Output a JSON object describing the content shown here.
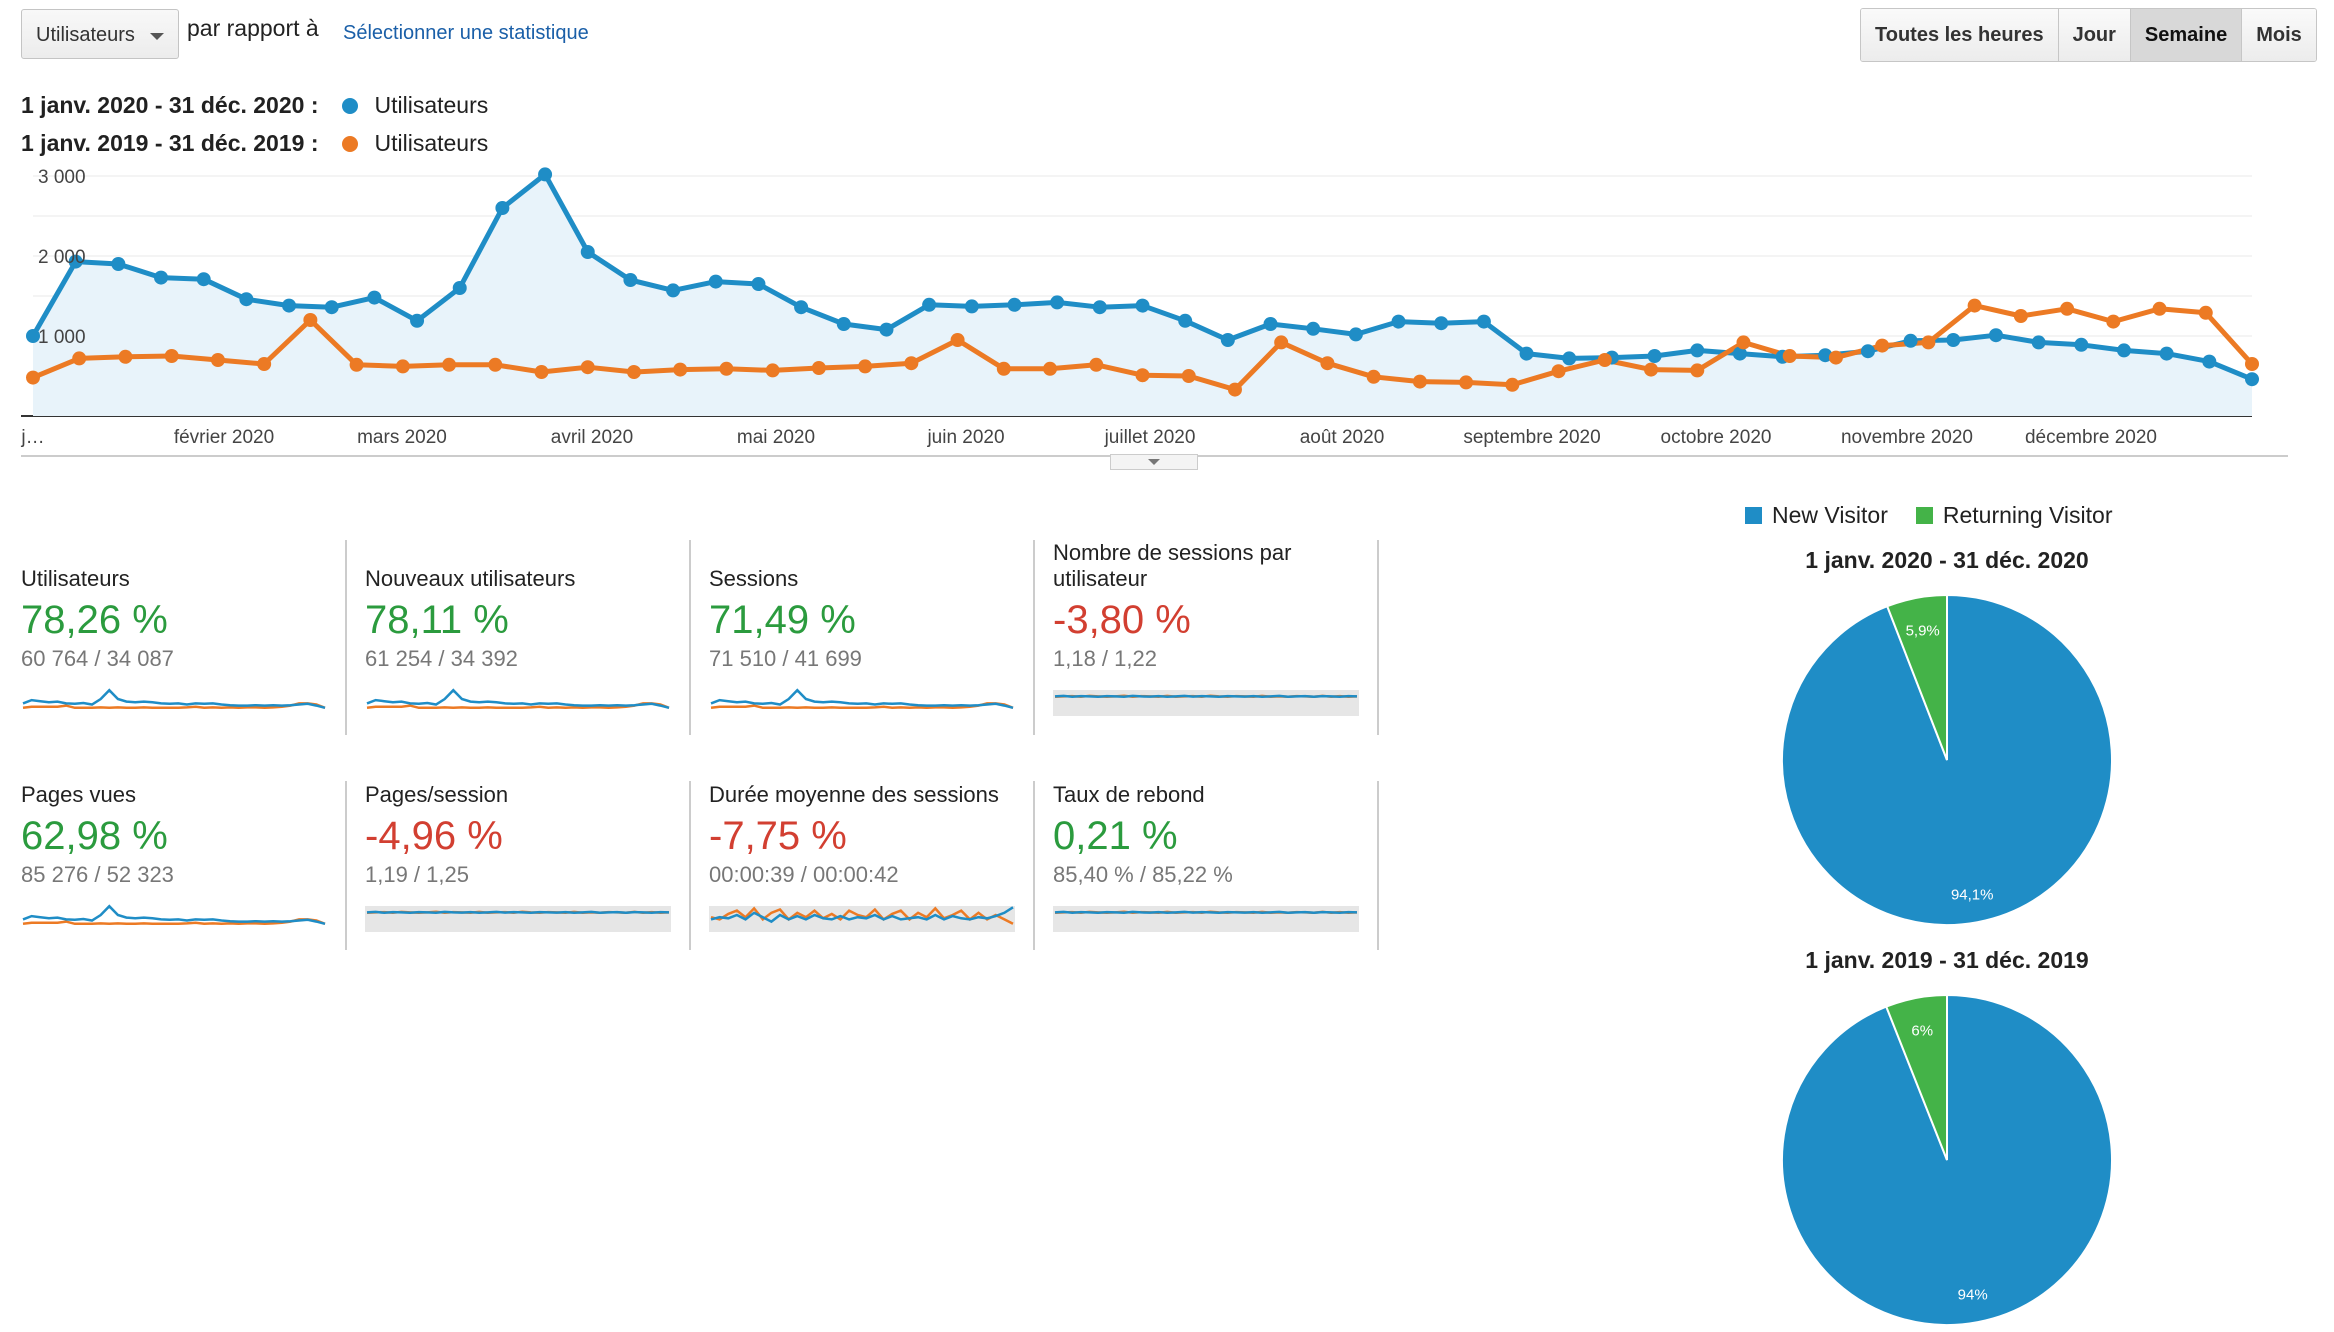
{
  "toolbar": {
    "metric_select": "Utilisateurs",
    "compare_label": "par rapport à",
    "select_stat_link": "Sélectionner une statistique",
    "periods": [
      "Toutes les heures",
      "Jour",
      "Semaine",
      "Mois"
    ],
    "active_period": "Semaine"
  },
  "legend": [
    {
      "range": "1 janv. 2020 - 31 déc. 2020 :",
      "name": "Utilisateurs",
      "color": "#1f8dc6"
    },
    {
      "range": "1 janv. 2019 - 31 déc. 2019 :",
      "name": "Utilisateurs",
      "color": "#ec7a24"
    }
  ],
  "chart_data": [
    {
      "type": "area",
      "title": "",
      "y_ticks": [
        "3 000",
        "2 000",
        "1 000"
      ],
      "y_tick_values": [
        3000,
        2000,
        1000
      ],
      "ylim": [
        0,
        3000
      ],
      "x_labels": [
        "j…",
        "février 2020",
        "mars 2020",
        "avril 2020",
        "mai 2020",
        "juin 2020",
        "juillet 2020",
        "août 2020",
        "septembre 2020",
        "octobre 2020",
        "novembre 2020",
        "décembre 2020"
      ],
      "grid": true,
      "series": [
        {
          "name": "1 janv. 2020 - 31 déc. 2020 : Utilisateurs",
          "color": "#1f8dc6",
          "values": [
            1000,
            1930,
            1900,
            1730,
            1710,
            1460,
            1380,
            1360,
            1480,
            1190,
            1600,
            2600,
            3020,
            2050,
            1700,
            1570,
            1680,
            1650,
            1360,
            1150,
            1080,
            1390,
            1370,
            1390,
            1420,
            1360,
            1380,
            1190,
            950,
            1150,
            1090,
            1020,
            1180,
            1160,
            1180,
            780,
            720,
            730,
            750,
            820,
            780,
            740,
            760,
            810,
            940,
            950,
            1010,
            920,
            890,
            820,
            780,
            680,
            460
          ]
        },
        {
          "name": "1 janv. 2019 - 31 déc. 2019 : Utilisateurs",
          "color": "#ec7a24",
          "values": [
            480,
            720,
            740,
            750,
            700,
            650,
            1200,
            640,
            620,
            640,
            640,
            550,
            610,
            550,
            580,
            590,
            570,
            600,
            620,
            660,
            950,
            590,
            590,
            640,
            510,
            500,
            330,
            920,
            660,
            490,
            430,
            420,
            390,
            560,
            700,
            580,
            570,
            920,
            750,
            730,
            880,
            920,
            1380,
            1250,
            1340,
            1180,
            1340,
            1290,
            650
          ]
        }
      ]
    },
    {
      "type": "pie",
      "title": "1 janv. 2020 - 31 déc. 2020",
      "categories": [
        "New Visitor",
        "Returning Visitor"
      ],
      "values": [
        94.1,
        5.9
      ],
      "labels": [
        "94,1%",
        "5,9%"
      ],
      "colors": [
        "#1f8dc6",
        "#44b348"
      ]
    },
    {
      "type": "pie",
      "title": "1 janv. 2019 - 31 déc. 2019",
      "categories": [
        "New Visitor",
        "Returning Visitor"
      ],
      "values": [
        94,
        6
      ],
      "labels": [
        "94%",
        "6%"
      ],
      "colors": [
        "#1f8dc6",
        "#44b348"
      ]
    }
  ],
  "pie_legend": [
    {
      "name": "New Visitor",
      "color": "#1f8dc6"
    },
    {
      "name": "Returning Visitor",
      "color": "#44b348"
    }
  ],
  "metrics": [
    {
      "name": "Utilisateurs",
      "pct": "78,26 %",
      "trend": "pos",
      "vals": "60 764 / 34 087",
      "spark": "traffic"
    },
    {
      "name": "Nouveaux utilisateurs",
      "pct": "78,11 %",
      "trend": "pos",
      "vals": "61 254 / 34 392",
      "spark": "traffic"
    },
    {
      "name": "Sessions",
      "pct": "71,49 %",
      "trend": "pos",
      "vals": "71 510 / 41 699",
      "spark": "traffic"
    },
    {
      "name": "Nombre de sessions par utilisateur",
      "pct": "-3,80 %",
      "trend": "neg",
      "vals": "1,18 / 1,22",
      "spark": "flat"
    },
    {
      "name": "Pages vues",
      "pct": "62,98 %",
      "trend": "pos",
      "vals": "85 276 / 52 323",
      "spark": "traffic"
    },
    {
      "name": "Pages/session",
      "pct": "-4,96 %",
      "trend": "neg",
      "vals": "1,19 / 1,25",
      "spark": "flat"
    },
    {
      "name": "Durée moyenne des sessions",
      "pct": "-7,75 %",
      "trend": "neg",
      "vals": "00:00:39 / 00:00:42",
      "spark": "noisy"
    },
    {
      "name": "Taux de rebond",
      "pct": "0,21 %",
      "trend": "pos",
      "vals": "85,40 % / 85,22 %",
      "spark": "flat"
    }
  ]
}
